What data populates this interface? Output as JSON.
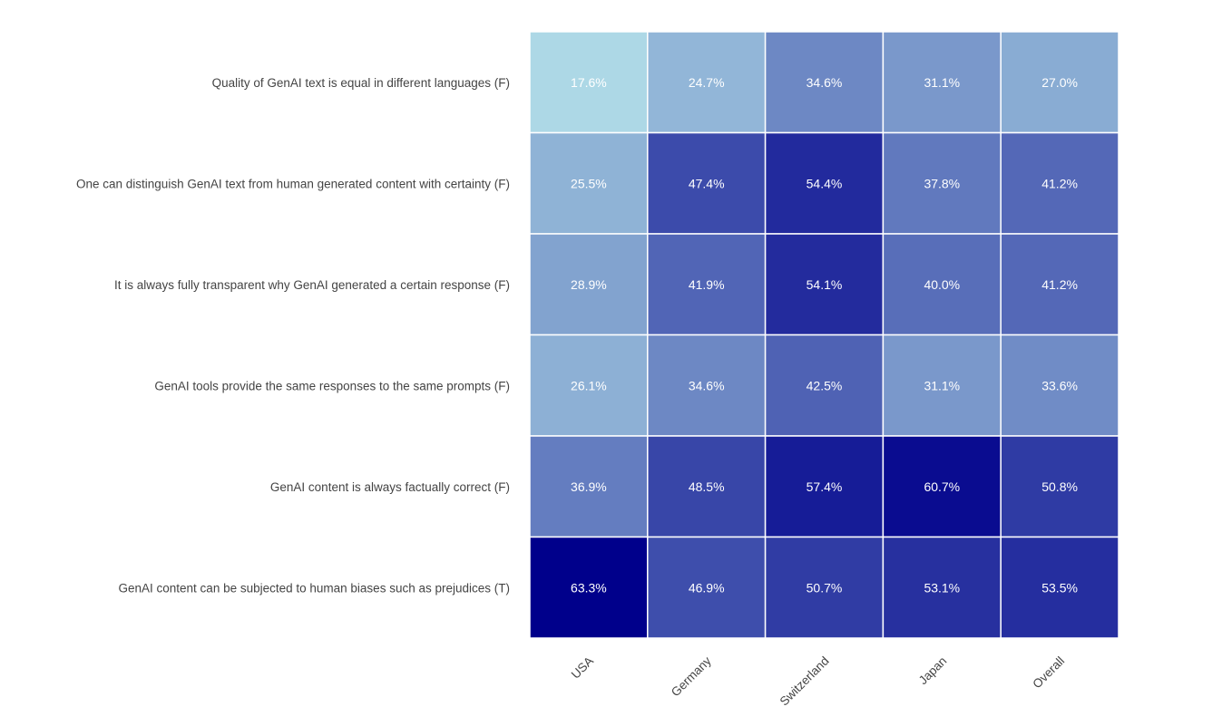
{
  "chart_data": {
    "type": "heatmap",
    "title": "",
    "xlabel": "",
    "ylabel": "",
    "columns": [
      "USA",
      "Germany",
      "Switzerland",
      "Japan",
      "Overall"
    ],
    "rows": [
      "Quality of GenAI text is equal in different languages (F)",
      "One can distinguish GenAI text from human generated content with certainty (F)",
      "It is always fully transparent why GenAI generated a certain response (F)",
      "GenAI tools provide the same responses to the same prompts (F)",
      "GenAI content is always factually correct (F)",
      "GenAI content can be subjected to human biases such as prejudices (T)"
    ],
    "values": [
      [
        17.6,
        24.7,
        34.6,
        31.1,
        27.0
      ],
      [
        25.5,
        47.4,
        54.4,
        37.8,
        41.2
      ],
      [
        28.9,
        41.9,
        54.1,
        40.0,
        41.2
      ],
      [
        26.1,
        34.6,
        42.5,
        31.1,
        33.6
      ],
      [
        36.9,
        48.5,
        57.4,
        60.7,
        50.8
      ],
      [
        63.3,
        46.9,
        50.7,
        53.1,
        53.5
      ]
    ],
    "cell_labels": [
      [
        "17.6%",
        "24.7%",
        "34.6%",
        "31.1%",
        "27.0%"
      ],
      [
        "25.5%",
        "47.4%",
        "54.4%",
        "37.8%",
        "41.2%"
      ],
      [
        "28.9%",
        "41.9%",
        "54.1%",
        "40.0%",
        "41.2%"
      ],
      [
        "26.1%",
        "34.6%",
        "42.5%",
        "31.1%",
        "33.6%"
      ],
      [
        "36.9%",
        "48.5%",
        "57.4%",
        "60.7%",
        "50.8%"
      ],
      [
        "63.3%",
        "46.9%",
        "50.7%",
        "53.1%",
        "53.5%"
      ]
    ],
    "value_unit": "%",
    "color_scale": {
      "low": "#add8e6",
      "high": "#00008b",
      "min": 17.6,
      "max": 63.3
    },
    "grid_color": "#ffffff",
    "label_color": "#ffffff",
    "legend": "none"
  }
}
